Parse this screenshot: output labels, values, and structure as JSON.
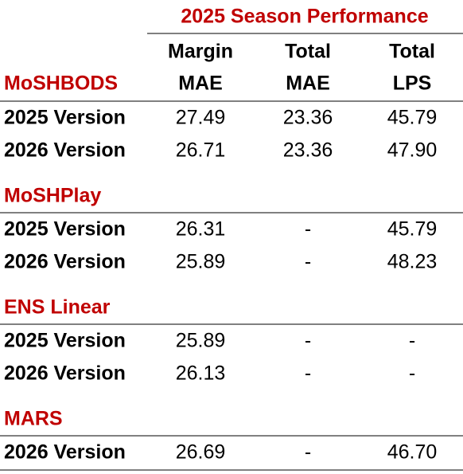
{
  "header": {
    "title": "2025 Season Performance",
    "columns": [
      [
        "Margin",
        "MAE"
      ],
      [
        "Total",
        "MAE"
      ],
      [
        "Total",
        "LPS"
      ]
    ]
  },
  "sections": [
    {
      "name": "MoSHBODS",
      "rows": [
        {
          "label": "2025 Version",
          "values": [
            "27.49",
            "23.36",
            "45.79"
          ]
        },
        {
          "label": "2026 Version",
          "values": [
            "26.71",
            "23.36",
            "47.90"
          ]
        }
      ]
    },
    {
      "name": "MoSHPlay",
      "rows": [
        {
          "label": "2025 Version",
          "values": [
            "26.31",
            "-",
            "45.79"
          ]
        },
        {
          "label": "2026 Version",
          "values": [
            "25.89",
            "-",
            "48.23"
          ]
        }
      ]
    },
    {
      "name": "ENS Linear",
      "rows": [
        {
          "label": "2025 Version",
          "values": [
            "25.89",
            "-",
            "-"
          ]
        },
        {
          "label": "2026 Version",
          "values": [
            "26.13",
            "-",
            "-"
          ]
        }
      ]
    },
    {
      "name": "MARS",
      "rows": [
        {
          "label": "2026 Version",
          "values": [
            "26.69",
            "-",
            "46.70"
          ]
        }
      ]
    }
  ]
}
